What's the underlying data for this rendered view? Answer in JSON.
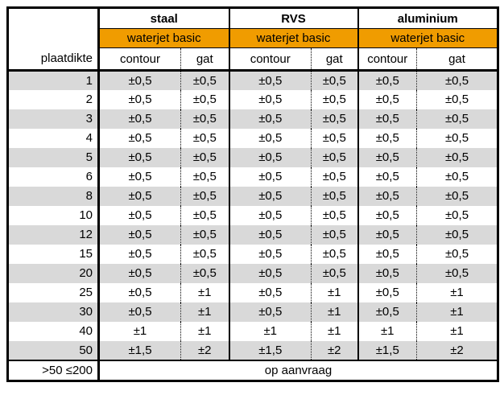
{
  "table": {
    "corner_label": "plaatdikte",
    "groups": [
      {
        "name": "staal",
        "subheader": "waterjet basic",
        "columns": [
          "contour",
          "gat"
        ]
      },
      {
        "name": "RVS",
        "subheader": "waterjet basic",
        "columns": [
          "contour",
          "gat"
        ]
      },
      {
        "name": "aluminium",
        "subheader": "waterjet basic",
        "columns": [
          "contour",
          "gat"
        ]
      }
    ],
    "rows": [
      {
        "thickness": "1",
        "values": [
          "±0,5",
          "±0,5",
          "±0,5",
          "±0,5",
          "±0,5",
          "±0,5"
        ]
      },
      {
        "thickness": "2",
        "values": [
          "±0,5",
          "±0,5",
          "±0,5",
          "±0,5",
          "±0,5",
          "±0,5"
        ]
      },
      {
        "thickness": "3",
        "values": [
          "±0,5",
          "±0,5",
          "±0,5",
          "±0,5",
          "±0,5",
          "±0,5"
        ]
      },
      {
        "thickness": "4",
        "values": [
          "±0,5",
          "±0,5",
          "±0,5",
          "±0,5",
          "±0,5",
          "±0,5"
        ]
      },
      {
        "thickness": "5",
        "values": [
          "±0,5",
          "±0,5",
          "±0,5",
          "±0,5",
          "±0,5",
          "±0,5"
        ]
      },
      {
        "thickness": "6",
        "values": [
          "±0,5",
          "±0,5",
          "±0,5",
          "±0,5",
          "±0,5",
          "±0,5"
        ]
      },
      {
        "thickness": "8",
        "values": [
          "±0,5",
          "±0,5",
          "±0,5",
          "±0,5",
          "±0,5",
          "±0,5"
        ]
      },
      {
        "thickness": "10",
        "values": [
          "±0,5",
          "±0,5",
          "±0,5",
          "±0,5",
          "±0,5",
          "±0,5"
        ]
      },
      {
        "thickness": "12",
        "values": [
          "±0,5",
          "±0,5",
          "±0,5",
          "±0,5",
          "±0,5",
          "±0,5"
        ]
      },
      {
        "thickness": "15",
        "values": [
          "±0,5",
          "±0,5",
          "±0,5",
          "±0,5",
          "±0,5",
          "±0,5"
        ]
      },
      {
        "thickness": "20",
        "values": [
          "±0,5",
          "±0,5",
          "±0,5",
          "±0,5",
          "±0,5",
          "±0,5"
        ]
      },
      {
        "thickness": "25",
        "values": [
          "±0,5",
          "±1",
          "±0,5",
          "±1",
          "±0,5",
          "±1"
        ]
      },
      {
        "thickness": "30",
        "values": [
          "±0,5",
          "±1",
          "±0,5",
          "±1",
          "±0,5",
          "±1"
        ]
      },
      {
        "thickness": "40",
        "values": [
          "±1",
          "±1",
          "±1",
          "±1",
          "±1",
          "±1"
        ]
      },
      {
        "thickness": "50",
        "values": [
          "±1,5",
          "±2",
          "±1,5",
          "±2",
          "±1,5",
          "±2"
        ]
      },
      {
        "thickness": ">50 ≤200",
        "span_text": "op aanvraag"
      }
    ],
    "colors": {
      "accent_orange": "#F09C00",
      "row_gray": "#D9D9D9",
      "border_black": "#000000"
    }
  }
}
